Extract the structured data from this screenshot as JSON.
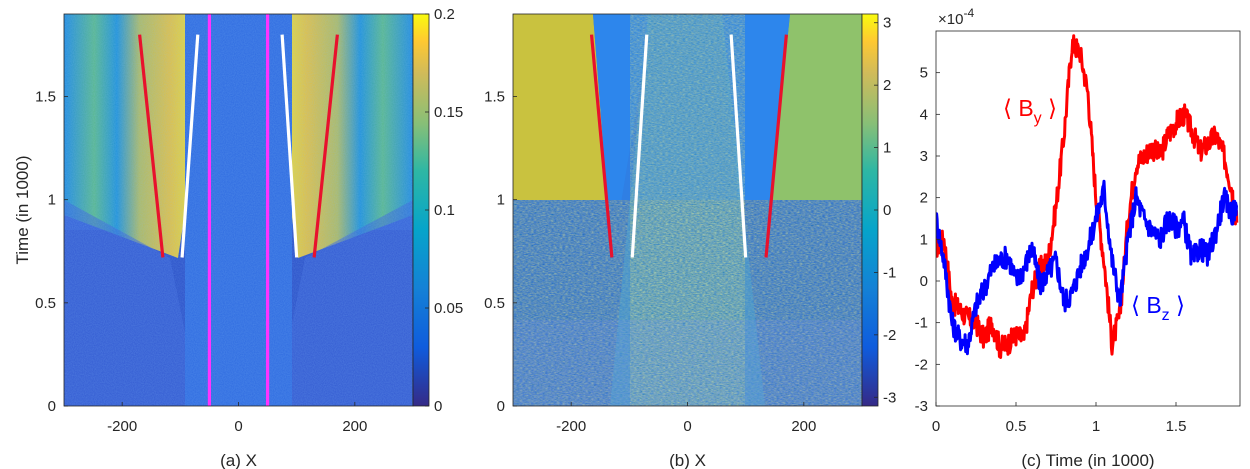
{
  "chart_data": [
    {
      "type": "heatmap",
      "xlabel": "(a) X",
      "ylabel": "Time (in 1000)",
      "xlim": [
        -300,
        300
      ],
      "ylim": [
        0,
        1.9
      ],
      "xticks": [
        "-200",
        "0",
        "200"
      ],
      "yticks": [
        "0",
        "0.5",
        "1",
        "1.5"
      ],
      "colorbar": {
        "ticks": [
          "0",
          "0.05",
          "0.1",
          "0.15",
          "0.2"
        ],
        "range": [
          0,
          0.2
        ],
        "colormap": "parula"
      },
      "overlay_lines": [
        {
          "color": "#e8112d",
          "points": [
            [
              -170,
              1.8
            ],
            [
              -130,
              0.72
            ]
          ]
        },
        {
          "color": "#ffffff",
          "points": [
            [
              -70,
              1.8
            ],
            [
              -97,
              0.72
            ]
          ]
        },
        {
          "color": "#ffffff",
          "points": [
            [
              75,
              1.8
            ],
            [
              100,
              0.72
            ]
          ]
        },
        {
          "color": "#e8112d",
          "points": [
            [
              170,
              1.8
            ],
            [
              130,
              0.72
            ]
          ]
        },
        {
          "color": "#ff33ff",
          "points": [
            [
              -50,
              0
            ],
            [
              -50,
              1.9
            ]
          ]
        },
        {
          "color": "#ff33ff",
          "points": [
            [
              50,
              0
            ],
            [
              50,
              1.9
            ]
          ]
        }
      ]
    },
    {
      "type": "heatmap",
      "xlabel": "(b) X",
      "ylabel": "",
      "xlim": [
        -300,
        300
      ],
      "ylim": [
        0,
        1.9
      ],
      "xticks": [
        "-200",
        "0",
        "200"
      ],
      "yticks": [
        "0",
        "0.5",
        "1",
        "1.5"
      ],
      "colorbar": {
        "ticks": [
          "-3",
          "-2",
          "-1",
          "0",
          "1",
          "2",
          "3"
        ],
        "range": [
          -3.14,
          3.14
        ],
        "colormap": "parula"
      },
      "overlay_lines": [
        {
          "color": "#e8112d",
          "points": [
            [
              -165,
              1.8
            ],
            [
              -130,
              0.72
            ]
          ]
        },
        {
          "color": "#ffffff",
          "points": [
            [
              -95,
              0.72
            ],
            [
              -70,
              1.8
            ]
          ]
        },
        {
          "color": "#ffffff",
          "points": [
            [
              75,
              1.8
            ],
            [
              100,
              0.72
            ]
          ]
        },
        {
          "color": "#e8112d",
          "points": [
            [
              170,
              1.8
            ],
            [
              135,
              0.72
            ]
          ]
        }
      ]
    },
    {
      "type": "line",
      "xlabel": "(c) Time (in 1000)",
      "ylabel": "",
      "xlim": [
        0,
        1.9
      ],
      "ylim": [
        -3,
        6
      ],
      "y_exponent": "×10^-4",
      "xticks": [
        "0",
        "0.5",
        "1",
        "1.5"
      ],
      "yticks": [
        "-3",
        "-2",
        "-1",
        "0",
        "1",
        "2",
        "3",
        "4",
        "5"
      ],
      "series": [
        {
          "name": "⟨ B_y ⟩",
          "color": "#ff0000",
          "x": [
            0,
            0.05,
            0.1,
            0.15,
            0.2,
            0.25,
            0.3,
            0.35,
            0.4,
            0.45,
            0.5,
            0.55,
            0.6,
            0.65,
            0.7,
            0.75,
            0.8,
            0.85,
            0.9,
            0.95,
            1.0,
            1.05,
            1.1,
            1.15,
            1.2,
            1.25,
            1.3,
            1.35,
            1.4,
            1.45,
            1.5,
            1.55,
            1.6,
            1.65,
            1.7,
            1.75,
            1.8,
            1.85,
            1.88
          ],
          "values": [
            0.8,
            1.0,
            -0.5,
            -0.7,
            -0.9,
            -1.0,
            -1.4,
            -1.0,
            -1.6,
            -1.5,
            -1.3,
            -1.4,
            -0.2,
            0.3,
            0.5,
            1.8,
            3.5,
            5.7,
            5.5,
            4.5,
            2.0,
            0.5,
            -1.5,
            -0.8,
            1.5,
            2.8,
            3.0,
            3.2,
            3.0,
            3.5,
            3.8,
            4.0,
            3.6,
            3.1,
            3.3,
            3.5,
            3.0,
            2.2,
            1.4
          ]
        },
        {
          "name": "⟨ B_z ⟩",
          "color": "#0000ff",
          "x": [
            0,
            0.05,
            0.1,
            0.15,
            0.2,
            0.25,
            0.3,
            0.35,
            0.4,
            0.45,
            0.5,
            0.55,
            0.6,
            0.65,
            0.7,
            0.75,
            0.8,
            0.85,
            0.9,
            0.95,
            1.0,
            1.05,
            1.1,
            1.15,
            1.2,
            1.25,
            1.3,
            1.35,
            1.4,
            1.45,
            1.5,
            1.55,
            1.6,
            1.65,
            1.7,
            1.75,
            1.8,
            1.85,
            1.88
          ],
          "values": [
            1.5,
            0.5,
            -1.0,
            -1.4,
            -1.5,
            -0.6,
            -0.2,
            0.3,
            0.5,
            0.6,
            0.0,
            0.3,
            0.8,
            -0.1,
            0.2,
            0.5,
            -0.5,
            -0.3,
            0.3,
            0.8,
            1.5,
            2.2,
            0.5,
            -0.5,
            1.0,
            2.0,
            1.5,
            1.2,
            1.0,
            1.5,
            1.3,
            1.4,
            0.5,
            0.8,
            0.6,
            1.2,
            2.0,
            1.6,
            1.8
          ]
        }
      ],
      "annotations": [
        {
          "text": "⟨ B_y ⟩",
          "color": "#ff0000"
        },
        {
          "text": "⟨ B_z ⟩",
          "color": "#0000ff"
        }
      ]
    }
  ]
}
